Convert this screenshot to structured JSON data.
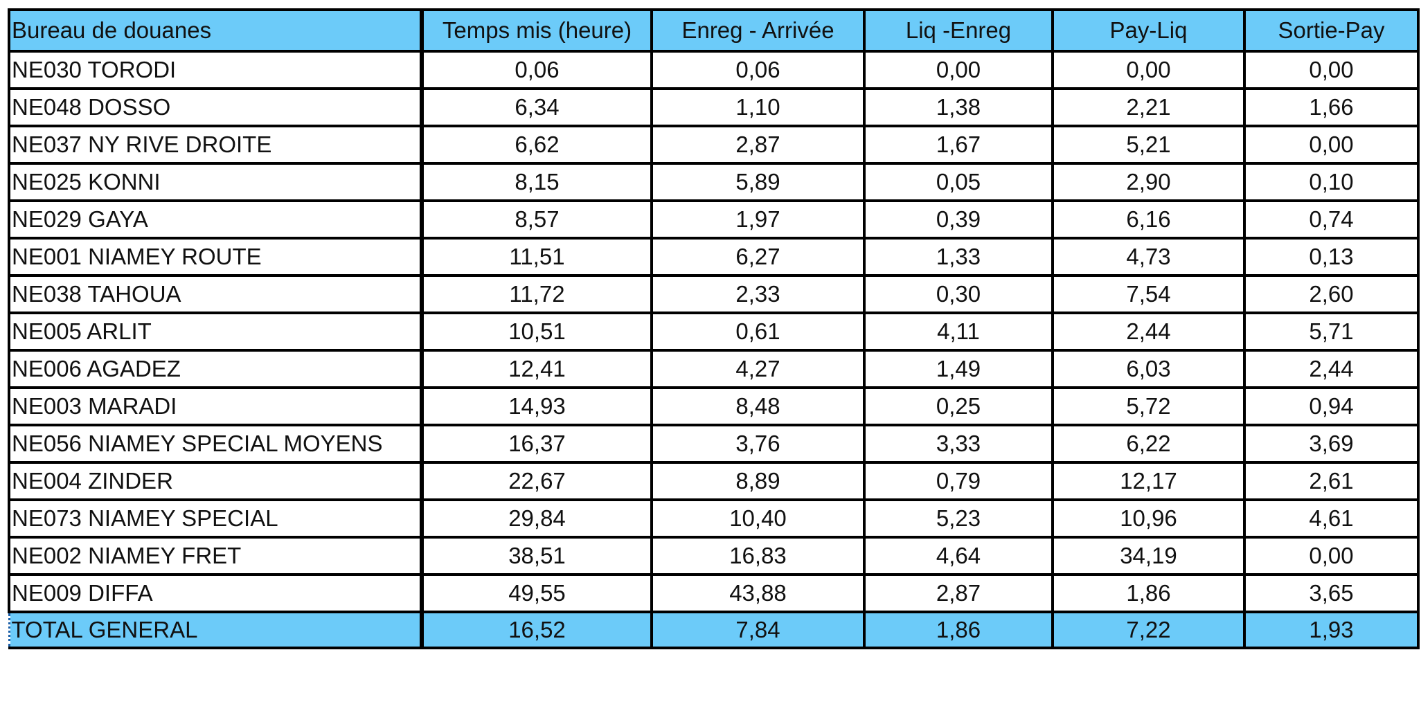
{
  "table": {
    "headers": [
      "Bureau de douanes",
      "Temps mis (heure)",
      "Enreg - Arrivée",
      "Liq -Enreg",
      "Pay-Liq",
      "Sortie-Pay"
    ],
    "rows": [
      [
        "NE030  TORODI",
        "0,06",
        "0,06",
        "0,00",
        "0,00",
        "0,00"
      ],
      [
        "NE048  DOSSO",
        "6,34",
        "1,10",
        "1,38",
        "2,21",
        "1,66"
      ],
      [
        "NE037  NY RIVE DROITE",
        "6,62",
        "2,87",
        "1,67",
        "5,21",
        "0,00"
      ],
      [
        "NE025  KONNI",
        "8,15",
        "5,89",
        "0,05",
        "2,90",
        "0,10"
      ],
      [
        "NE029  GAYA",
        "8,57",
        "1,97",
        "0,39",
        "6,16",
        "0,74"
      ],
      [
        "NE001  NIAMEY ROUTE",
        "11,51",
        "6,27",
        "1,33",
        "4,73",
        "0,13"
      ],
      [
        "NE038  TAHOUA",
        "11,72",
        "2,33",
        "0,30",
        "7,54",
        "2,60"
      ],
      [
        "NE005  ARLIT",
        "10,51",
        "0,61",
        "4,11",
        "2,44",
        "5,71"
      ],
      [
        "NE006  AGADEZ",
        "12,41",
        "4,27",
        "1,49",
        "6,03",
        "2,44"
      ],
      [
        "NE003  MARADI",
        "14,93",
        "8,48",
        "0,25",
        "5,72",
        "0,94"
      ],
      [
        "NE056  NIAMEY SPECIAL MOYENS",
        "16,37",
        "3,76",
        "3,33",
        "6,22",
        "3,69"
      ],
      [
        "NE004  ZINDER",
        "22,67",
        "8,89",
        "0,79",
        "12,17",
        "2,61"
      ],
      [
        "NE073  NIAMEY SPECIAL",
        "29,84",
        "10,40",
        "5,23",
        "10,96",
        "4,61"
      ],
      [
        "NE002  NIAMEY FRET",
        "38,51",
        "16,83",
        "4,64",
        "34,19",
        "0,00"
      ],
      [
        "NE009  DIFFA",
        "49,55",
        "43,88",
        "2,87",
        "1,86",
        "3,65"
      ]
    ],
    "total": [
      "TOTAL GENERAL",
      "16,52",
      "7,84",
      "1,86",
      "7,22",
      "1,93"
    ]
  },
  "colors": {
    "header_bg": "#6ccbf9",
    "total_bg": "#6ccbf9",
    "border": "#000000"
  }
}
